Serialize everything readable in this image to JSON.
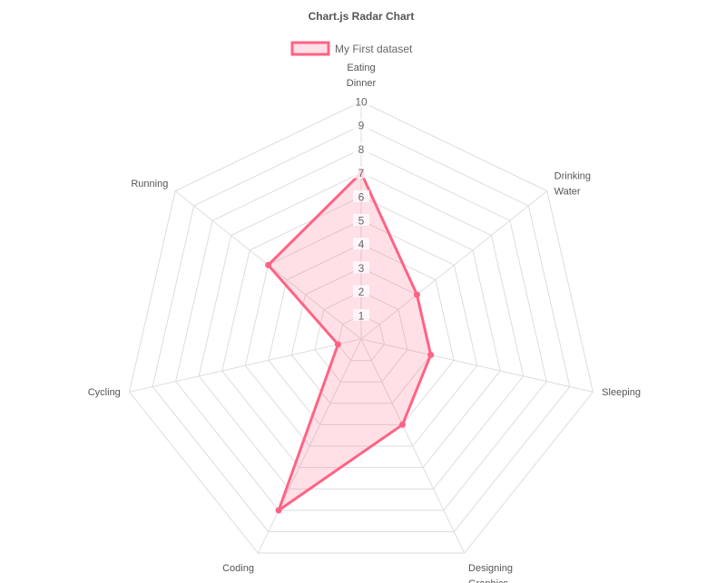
{
  "chart_data": {
    "type": "radar",
    "title": "Chart.js Radar Chart",
    "labels": [
      [
        "Eating",
        "Dinner"
      ],
      [
        "Drinking",
        "Water"
      ],
      [
        "Sleeping"
      ],
      [
        "Designing",
        "Graphics"
      ],
      [
        "Coding"
      ],
      [
        "Cycling"
      ],
      [
        "Running"
      ]
    ],
    "series": [
      {
        "name": "My First dataset",
        "values": [
          7,
          3,
          3,
          4,
          8,
          1,
          5
        ],
        "border_color": "#ff6384",
        "fill_color": "rgba(255,99,132,0.2)"
      }
    ],
    "r_range": [
      0,
      10
    ],
    "ticks": [
      "1",
      "2",
      "3",
      "4",
      "5",
      "6",
      "7",
      "8",
      "9",
      "10"
    ],
    "legend_position": "top",
    "grid_color": "#dddddd"
  }
}
